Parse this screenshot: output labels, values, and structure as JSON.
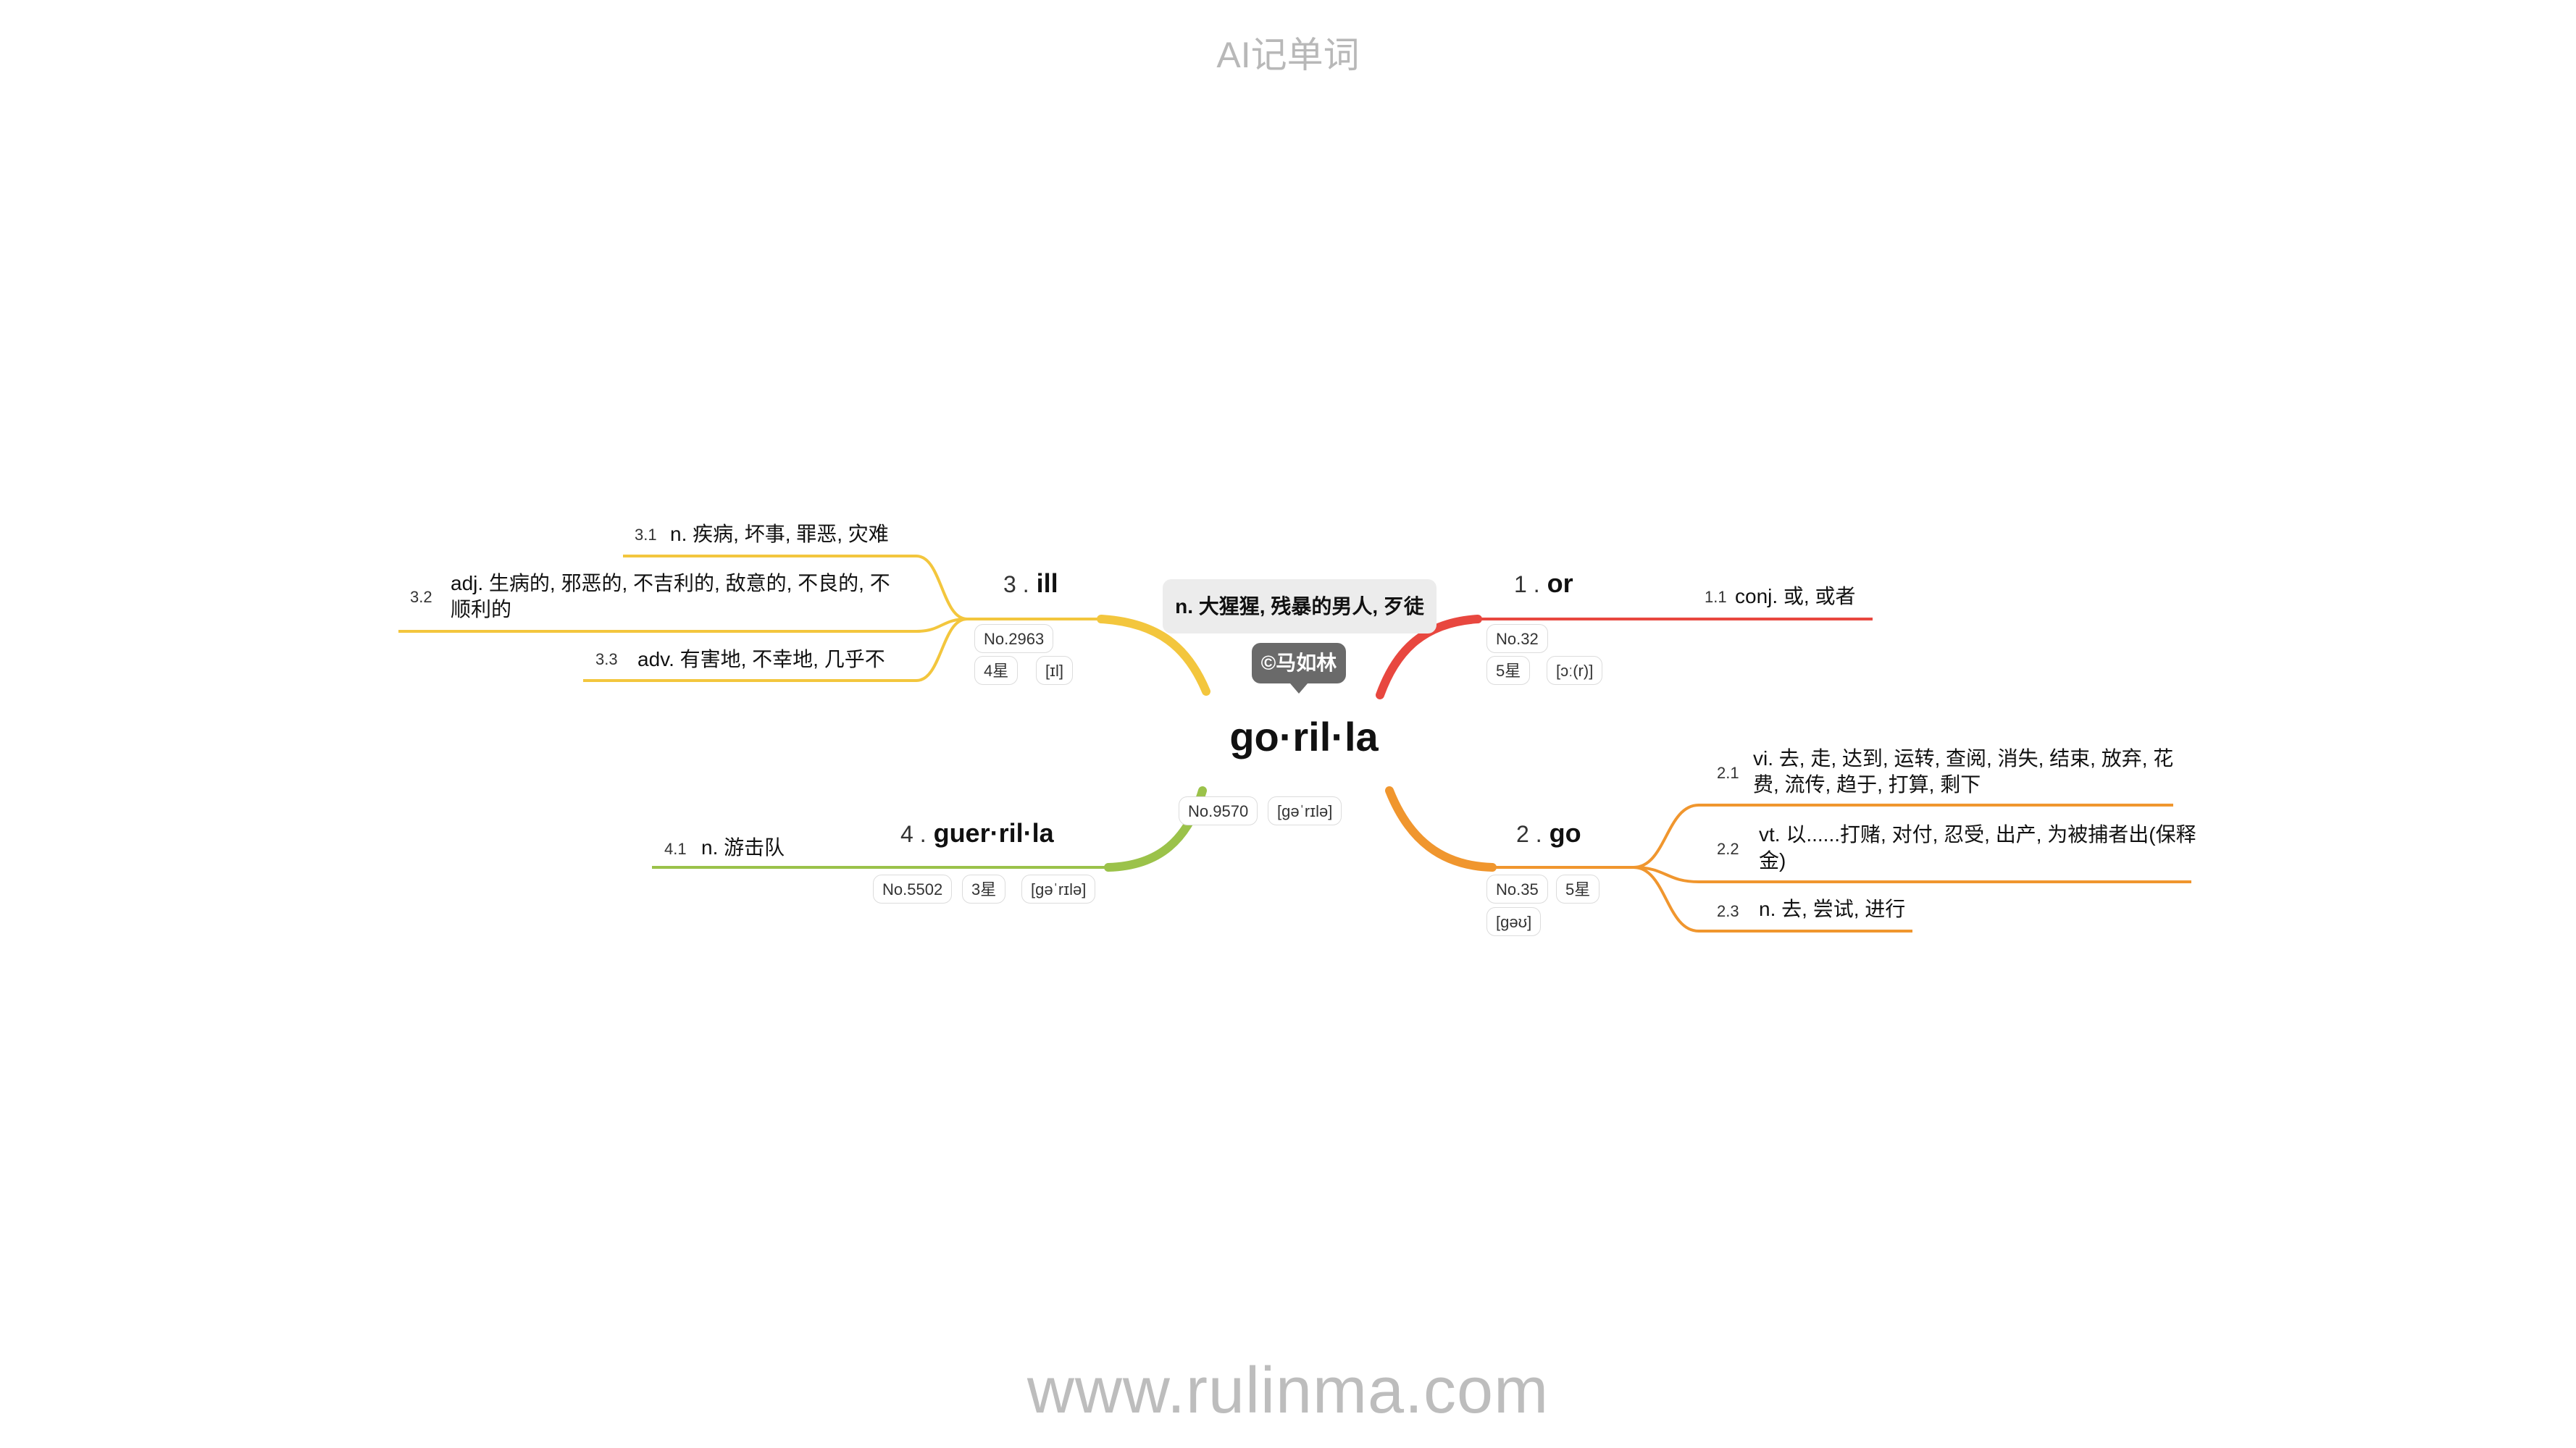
{
  "header": "AI记单词",
  "footer": "www.rulinma.com",
  "center": {
    "word": "go·ril·la",
    "gloss": "n. 大猩猩, 残暴的男人, 歹徒",
    "author": "©马如林",
    "rank": "No.9570",
    "phonetic": "[gəˈrɪlə]"
  },
  "colors": {
    "or": "#e8473f",
    "go": "#f0962e",
    "ill": "#f3c63d",
    "guerrilla": "#9bc24a"
  },
  "branches": {
    "or": {
      "num": "1 .",
      "word": "or",
      "rank": "No.32",
      "stars": "5星",
      "phonetic": "[ɔː(r)]",
      "senses": [
        {
          "num": "1.1",
          "text": "conj. 或, 或者"
        }
      ]
    },
    "go": {
      "num": "2 .",
      "word": "go",
      "rank": "No.35",
      "stars": "5星",
      "phonetic": "[gəʊ]",
      "senses": [
        {
          "num": "2.1",
          "line1": "vi. 去, 走, 达到, 运转, 查阅, 消失, 结束, 放弃, 花",
          "line2": "费, 流传, 趋于, 打算, 剩下"
        },
        {
          "num": "2.2",
          "line1": "vt. 以......打赌, 对付, 忍受, 出产, 为被捕者出(保释",
          "line2": "金)"
        },
        {
          "num": "2.3",
          "text": "n. 去, 尝试, 进行"
        }
      ]
    },
    "ill": {
      "num": "3 .",
      "word": "ill",
      "rank": "No.2963",
      "stars": "4星",
      "phonetic": "[ɪl]",
      "senses": [
        {
          "num": "3.1",
          "text": "n. 疾病, 坏事, 罪恶, 灾难"
        },
        {
          "num": "3.2",
          "line1": "adj. 生病的, 邪恶的, 不吉利的, 敌意的, 不良的, 不",
          "line2": "顺利的"
        },
        {
          "num": "3.3",
          "text": "adv. 有害地, 不幸地, 几乎不"
        }
      ]
    },
    "guerrilla": {
      "num": "4 .",
      "word": "guer·ril·la",
      "rank": "No.5502",
      "stars": "3星",
      "phonetic": "[gəˈrɪlə]",
      "senses": [
        {
          "num": "4.1",
          "text": "n. 游击队"
        }
      ]
    }
  }
}
